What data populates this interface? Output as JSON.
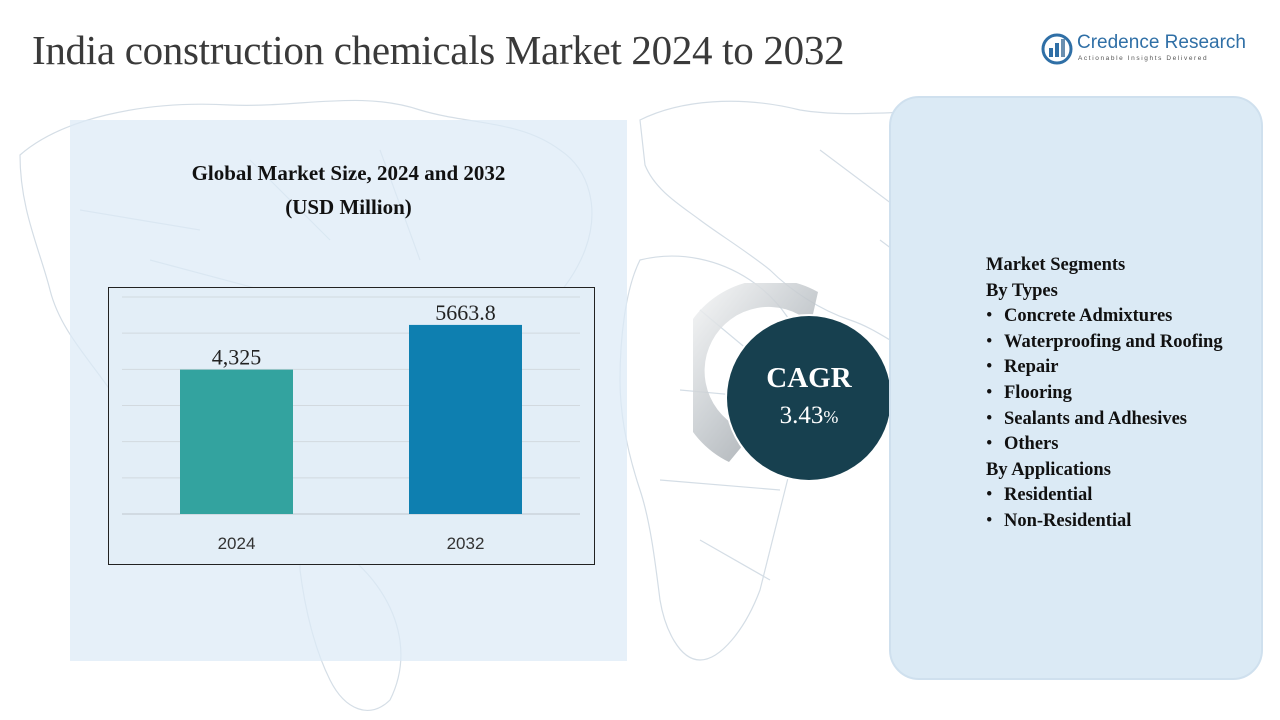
{
  "title": "India construction chemicals Market 2024 to 2032",
  "logo": {
    "name": "Credence Research",
    "tagline": "Actionable Insights Delivered",
    "icon": "credence-logo-icon"
  },
  "chart_panel": {
    "title_line1": "Global Market Size, 2024 and 2032",
    "title_line2": "(USD Million)"
  },
  "chart_data": {
    "type": "bar",
    "title": "Global Market Size, 2024 and 2032 (USD Million)",
    "categories": [
      "2024",
      "2032"
    ],
    "values": [
      4325,
      5663.8
    ],
    "value_labels": [
      "4,325",
      "5663.8"
    ],
    "colors": [
      "#33a39f",
      "#0e7fb0"
    ],
    "ylim": [
      0,
      6500
    ],
    "grid": true,
    "legend": "none"
  },
  "cagr": {
    "label": "CAGR",
    "value": "3.43",
    "unit": "%"
  },
  "segments": {
    "heading": "Market Segments",
    "groups": [
      {
        "title": "By Types",
        "items": [
          "Concrete Admixtures",
          "Waterproofing and Roofing",
          "Repair",
          "Flooring",
          "Sealants and Adhesives",
          "Others"
        ]
      },
      {
        "title": "By Applications",
        "items": [
          "Residential",
          "Non-Residential"
        ]
      }
    ]
  },
  "colors": {
    "panel_bg": "#dceaf6",
    "cagr_circle": "#17404f",
    "logo_blue": "#2f6fa6"
  }
}
